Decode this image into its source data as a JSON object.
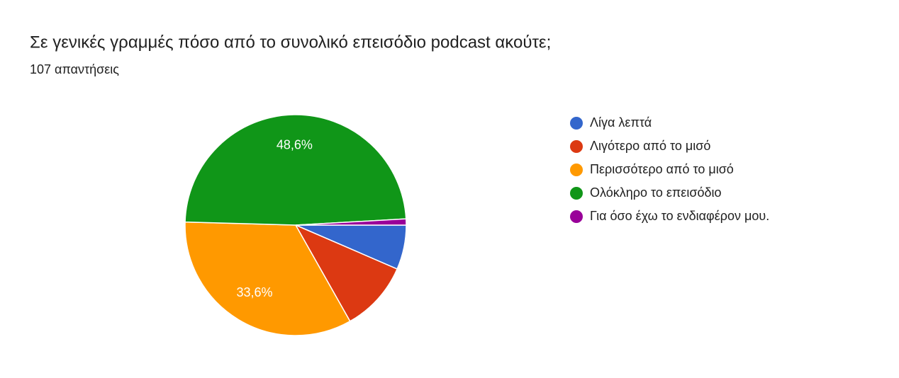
{
  "chart_data": {
    "type": "pie",
    "title": "Σε γενικές γραμμές πόσο από το συνολικό επεισόδιο podcast ακούτε;",
    "subtitle": "107 απαντήσεις",
    "categories": [
      "Λίγα λεπτά",
      "Λιγότερο από το μισό",
      "Περισσότερο από το μισό",
      "Ολόκληρο το επεισόδιο",
      "Για όσο έχω το ενδιαφέρον μου."
    ],
    "values": [
      6.5,
      10.3,
      33.6,
      48.6,
      0.9
    ],
    "value_labels": [
      null,
      null,
      "33,6%",
      "48,6%",
      null
    ],
    "colors": [
      "#3366cc",
      "#dc3912",
      "#ff9900",
      "#109618",
      "#990099"
    ],
    "legend": "right"
  }
}
